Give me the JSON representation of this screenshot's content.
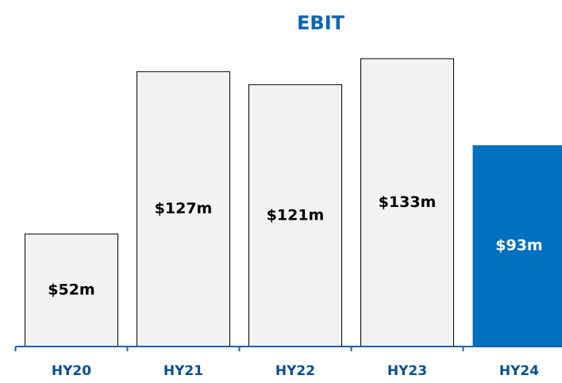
{
  "chart_data": {
    "type": "bar",
    "title": "EBIT",
    "categories": [
      "HY20",
      "HY21",
      "HY22",
      "HY23",
      "HY24"
    ],
    "values": [
      52,
      127,
      121,
      133,
      93
    ],
    "value_labels": [
      "$52m",
      "$127m",
      "$121m",
      "$133m",
      "$93m"
    ],
    "colors": [
      "#f2f2f2",
      "#f2f2f2",
      "#f2f2f2",
      "#f2f2f2",
      "#0070c0"
    ]
  }
}
